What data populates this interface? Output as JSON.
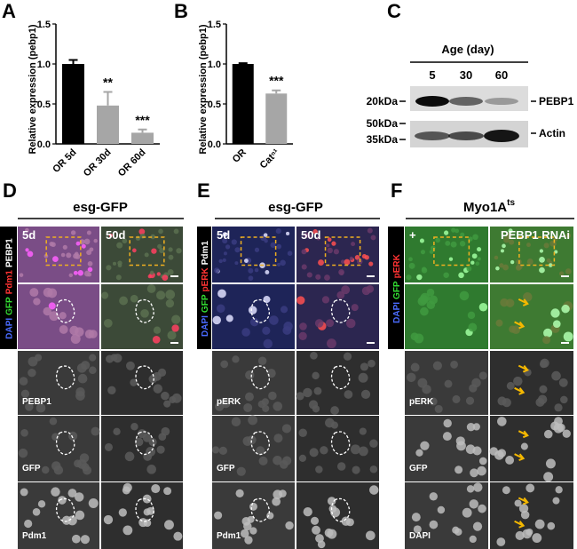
{
  "chart_data": [
    {
      "type": "bar",
      "panel": "A",
      "ylabel": "Relative expression (pebp1)",
      "categories": [
        "OR 5d",
        "OR 30d",
        "OR 60d"
      ],
      "values": [
        1.0,
        0.48,
        0.14
      ],
      "errors": [
        0.05,
        0.17,
        0.04
      ],
      "colors": [
        "#000000",
        "#a6a6a6",
        "#a6a6a6"
      ],
      "annotations": [
        null,
        "**",
        "***"
      ],
      "ylim": [
        0,
        1.5
      ],
      "yticks": [
        {
          "value": 0,
          "label": "0.0"
        },
        {
          "value": 0.5,
          "label": "0.5"
        },
        {
          "value": 1,
          "label": "1.0"
        },
        {
          "value": 1.5,
          "label": "1.5"
        }
      ]
    },
    {
      "type": "bar",
      "panel": "B",
      "ylabel": "Relative expression (pebp1)",
      "categories": [
        "OR",
        "Catⁿ¹"
      ],
      "values": [
        1.0,
        0.63
      ],
      "errors": [
        0.01,
        0.04
      ],
      "colors": [
        "#000000",
        "#a6a6a6"
      ],
      "annotations": [
        null,
        "***"
      ],
      "ylim": [
        0,
        1.5
      ],
      "yticks": [
        {
          "value": 0,
          "label": "0.0"
        },
        {
          "value": 0.5,
          "label": "0.5"
        },
        {
          "value": 1,
          "label": "1.0"
        },
        {
          "value": 1.5,
          "label": "1.5"
        }
      ]
    }
  ],
  "blot": {
    "panel": "C",
    "age_label": "Age (day)",
    "lanes": [
      "5",
      "30",
      "60"
    ],
    "markers": [
      "20kDa",
      "50kDa",
      "35kDa"
    ],
    "proteins": [
      "PEBP1",
      "Actin"
    ]
  },
  "panels": [
    {
      "panel": "D",
      "title": "esg-GFP",
      "columns": [
        "5d",
        "50d"
      ],
      "channels": [
        {
          "text": "DAPI",
          "color": "#4a6bff"
        },
        {
          "text": "GFP",
          "color": "#33dd33"
        },
        {
          "text": "Pdm1",
          "color": "#ff3333"
        },
        {
          "text": "PEBP1",
          "color": "#ffffff"
        }
      ],
      "rows": [
        "PEBP1",
        "GFP",
        "Pdm1"
      ]
    },
    {
      "panel": "E",
      "title": "esg-GFP",
      "columns": [
        "5d",
        "50d"
      ],
      "channels": [
        {
          "text": "DAPI",
          "color": "#4a6bff"
        },
        {
          "text": "GFP",
          "color": "#33dd33"
        },
        {
          "text": "pERK",
          "color": "#ff3333"
        },
        {
          "text": "Pdm1",
          "color": "#ffffff"
        }
      ],
      "rows": [
        "pERK",
        "GFP",
        "Pdm1"
      ]
    },
    {
      "panel": "F",
      "title": "Myo1A",
      "title_sup": "ts",
      "columns": [
        "+",
        "PEBP1 RNAi"
      ],
      "channels": [
        {
          "text": "DAPI",
          "color": "#4a6bff"
        },
        {
          "text": "GFP",
          "color": "#33dd33"
        },
        {
          "text": "pERK",
          "color": "#ff3333"
        }
      ],
      "rows": [
        "pERK",
        "GFP",
        "DAPI"
      ]
    }
  ]
}
